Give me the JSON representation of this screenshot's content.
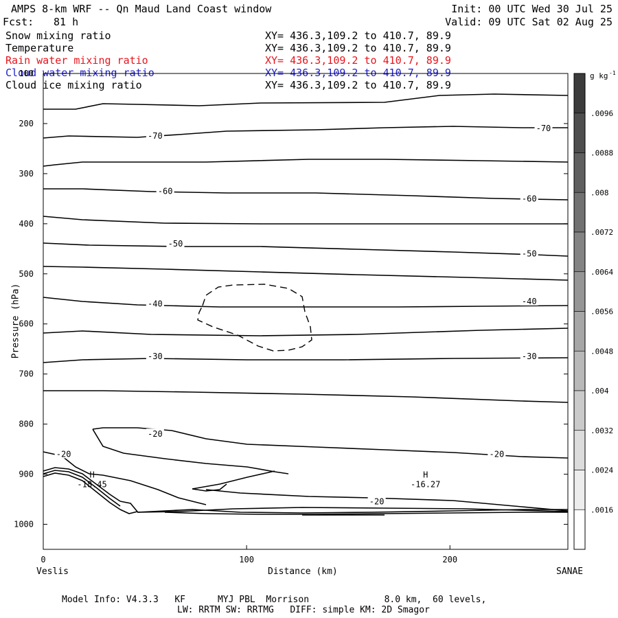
{
  "header": {
    "title": "AMPS 8-km WRF -- Qn Maud Land Coast window",
    "init": "Init: 00 UTC Wed 30 Jul 25",
    "fcst_label": "Fcst:",
    "fcst_value": "81 h",
    "valid": "Valid: 09 UTC Sat 02 Aug 25"
  },
  "variables": [
    {
      "name": "Snow mixing ratio",
      "xy": "XY= 436.3,109.2 to 410.7, 89.9",
      "color": "#000000"
    },
    {
      "name": "Temperature",
      "xy": "XY= 436.3,109.2 to 410.7, 89.9",
      "color": "#000000"
    },
    {
      "name": "Rain water mixing ratio",
      "xy": "XY= 436.3,109.2 to 410.7, 89.9",
      "color": "#e8141c"
    },
    {
      "name": "Cloud water mixing ratio",
      "xy": "XY= 436.3,109.2 to 410.7, 89.9",
      "color": "#1e1ec8"
    },
    {
      "name": "Cloud ice mixing ratio",
      "xy": "XY= 436.3,109.2 to 410.7, 89.9",
      "color": "#000000"
    }
  ],
  "chart_data": {
    "type": "line",
    "subtype": "cross-section contour",
    "ylabel": "Pressure (hPa)",
    "xlabel": "Distance (km)",
    "x_ticks": [
      "0",
      "100",
      "200"
    ],
    "y_ticks": [
      "200",
      "300",
      "400",
      "500",
      "600",
      "700",
      "800",
      "900",
      "1000"
    ],
    "y_top_label": "100",
    "xlim": [
      0,
      258
    ],
    "ylim": [
      1050,
      100
    ],
    "y_scale": "linear (inverted)",
    "endpoint_left": "Veslis",
    "endpoint_right": "SANAE",
    "isotherm_labels": [
      {
        "text": "-70",
        "x": 55,
        "p": 225
      },
      {
        "text": "-70",
        "x": 246,
        "p": 210
      },
      {
        "text": "-60",
        "x": 60,
        "p": 335
      },
      {
        "text": "-60",
        "x": 239,
        "p": 350
      },
      {
        "text": "-50",
        "x": 65,
        "p": 440
      },
      {
        "text": "-50",
        "x": 239,
        "p": 460
      },
      {
        "text": "-40",
        "x": 55,
        "p": 560
      },
      {
        "text": "-40",
        "x": 239,
        "p": 555
      },
      {
        "text": "-30",
        "x": 55,
        "p": 665
      },
      {
        "text": "-30",
        "x": 239,
        "p": 665
      },
      {
        "text": "-20",
        "x": 55,
        "p": 820
      },
      {
        "text": "-20",
        "x": 223,
        "p": 860
      },
      {
        "text": "-20",
        "x": 10,
        "p": 860
      },
      {
        "text": "-20",
        "x": 164,
        "p": 955
      }
    ],
    "maxima": [
      {
        "symbol": "H",
        "value": "-18.45",
        "x": 24,
        "p": 918
      },
      {
        "symbol": "H",
        "value": "-16.27",
        "x": 188,
        "p": 918
      }
    ],
    "colorbar": {
      "unit": "g kg",
      "unit_exp": "-1",
      "labels": [
        ".0096",
        ".0088",
        ".008",
        ".0072",
        ".0064",
        ".0056",
        ".0048",
        ".004",
        ".0032",
        ".0024",
        ".0016"
      ]
    }
  },
  "footer": {
    "line1": "Model Info: V4.3.3   KF      MYJ PBL  Morrison              8.0 km,  60 levels,",
    "line2": "LW: RRTM SW: RRTMG   DIFF: simple KM: 2D Smagor"
  }
}
